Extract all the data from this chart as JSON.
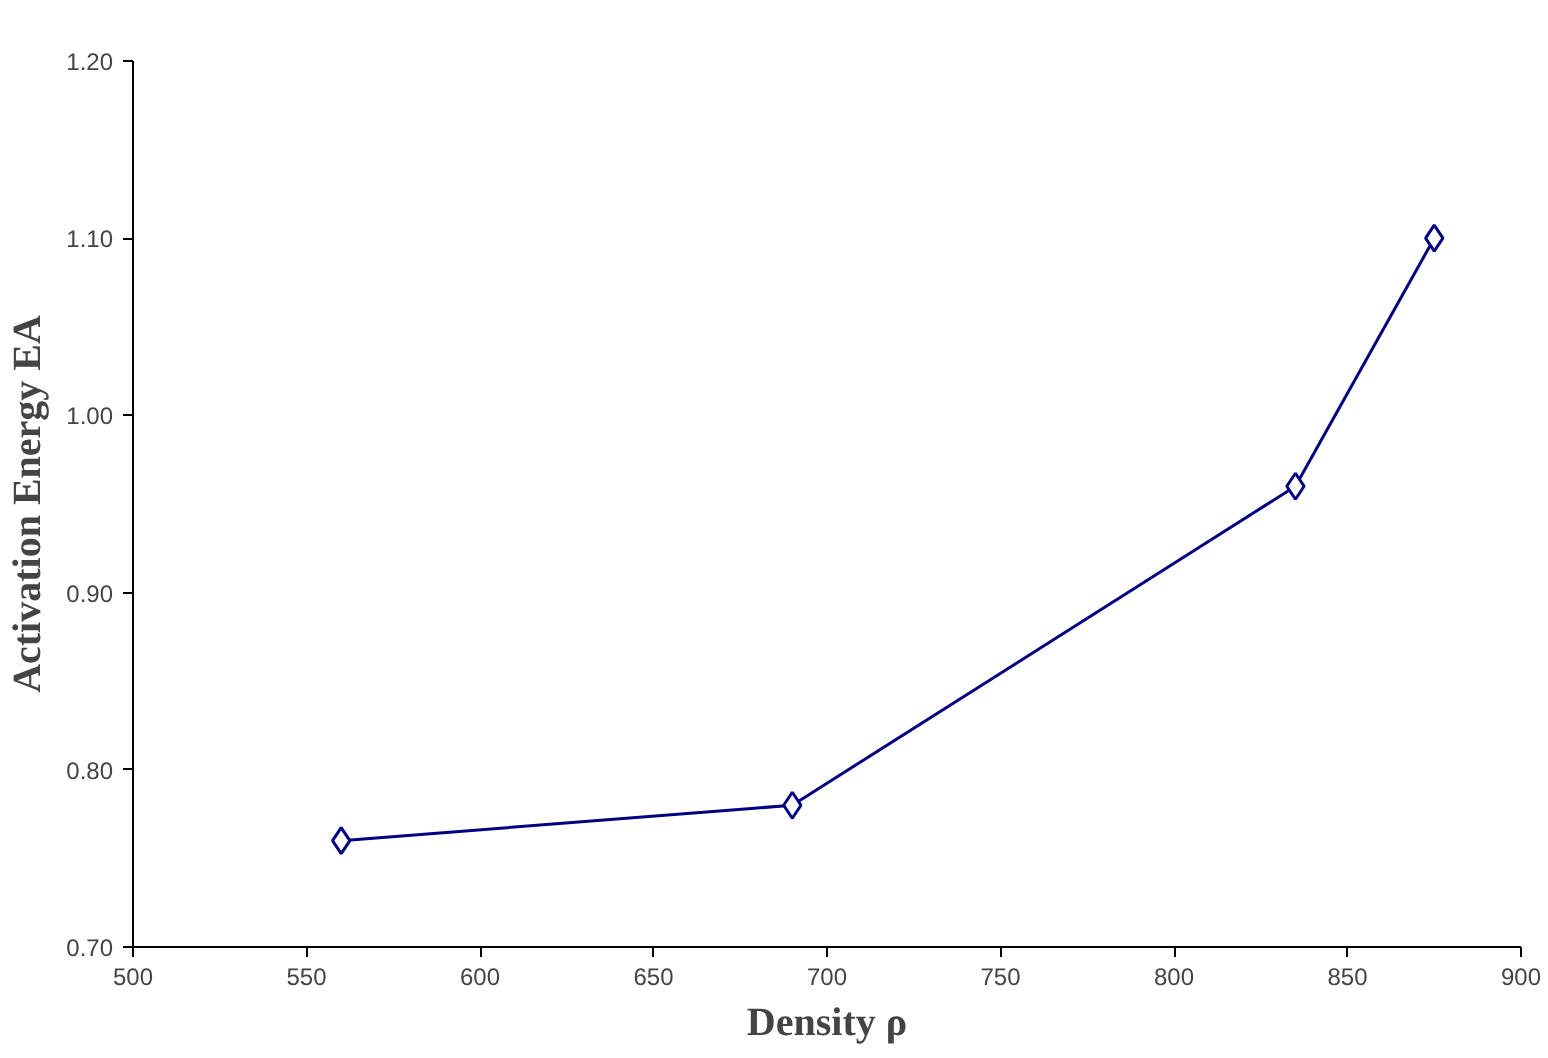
{
  "chart_data": {
    "type": "line",
    "xlabel": "Density ρ",
    "ylabel": "Activation Energy EA",
    "x": [
      560,
      690,
      835,
      875
    ],
    "series": [
      {
        "color": "#000080",
        "values": [
          0.76,
          0.78,
          0.96,
          1.1
        ]
      }
    ],
    "xlim": [
      500,
      900
    ],
    "xticks": [
      500,
      550,
      600,
      650,
      700,
      750,
      800,
      850,
      900
    ],
    "ylim": [
      0.7,
      1.2
    ],
    "yticks": [
      {
        "value": 0.7,
        "label": "0.70"
      },
      {
        "value": 0.8,
        "label": "0.80"
      },
      {
        "value": 0.9,
        "label": "0.90"
      },
      {
        "value": 1.0,
        "label": "1.00"
      },
      {
        "value": 1.1,
        "label": "1.10"
      },
      {
        "value": 1.2,
        "label": "1.20"
      }
    ],
    "grid": false,
    "marker": "diamond",
    "line_style": "solid"
  }
}
